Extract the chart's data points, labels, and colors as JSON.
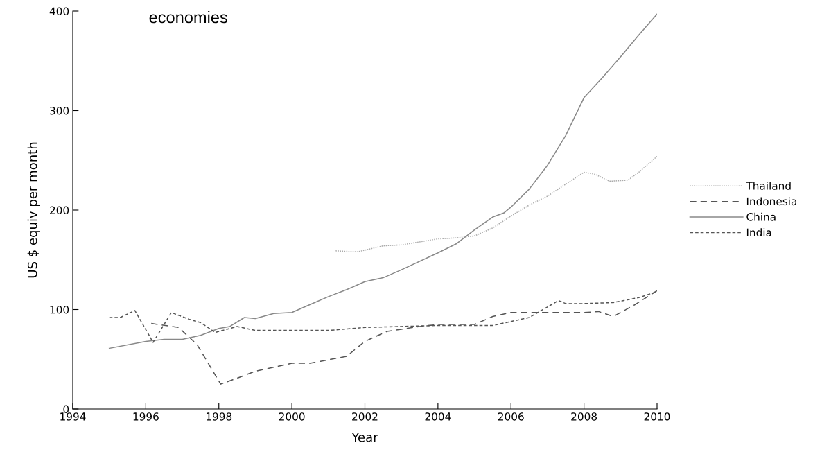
{
  "chart_data": {
    "type": "line",
    "title": "economies",
    "xlabel": "Year",
    "ylabel": "US $ equiv per month",
    "xlim": [
      1994,
      2010
    ],
    "xticks": [
      1994,
      1996,
      1998,
      2000,
      2002,
      2004,
      2006,
      2008,
      2010
    ],
    "ylim": [
      0,
      400
    ],
    "yticks": [
      0,
      100,
      200,
      300,
      400
    ],
    "grid": false,
    "legend": "right",
    "series": [
      {
        "name": "Thailand",
        "color": "#aaaaaa",
        "line_style": "dotted",
        "x": [
          2001.2,
          2001.8,
          2002.5,
          2003,
          2003.5,
          2004,
          2004.5,
          2005,
          2005.5,
          2006,
          2006.5,
          2007,
          2007.5,
          2008,
          2008.3,
          2008.7,
          2009.2,
          2009.5,
          2010
        ],
        "values": [
          159,
          158,
          164,
          165,
          168,
          171,
          172,
          174,
          182,
          194,
          205,
          214,
          226,
          238,
          236,
          229,
          230,
          238,
          254
        ]
      },
      {
        "name": "Indonesia",
        "color": "#555555",
        "line_style": "dashed",
        "x": [
          1996.15,
          1996.9,
          1997.4,
          1998.05,
          1998.5,
          1999,
          2000,
          2000.5,
          2001.5,
          2002,
          2002.6,
          2003.5,
          2004,
          2005,
          2005.5,
          2006,
          2006.5,
          2008,
          2008.4,
          2008.8,
          2009.4,
          2010
        ],
        "values": [
          86,
          82,
          65,
          25,
          31,
          38,
          46,
          46,
          53,
          68,
          78,
          83,
          85,
          85,
          93,
          97,
          97,
          97,
          98,
          93,
          105,
          119
        ]
      },
      {
        "name": "China",
        "color": "#888888",
        "line_style": "solid",
        "x": [
          1995,
          1996,
          1996.5,
          1997,
          1997.5,
          1998,
          1998.3,
          1998.7,
          1999,
          1999.5,
          2000,
          2000.5,
          2001,
          2001.5,
          2002,
          2002.5,
          2003,
          2004,
          2004.5,
          2005,
          2005.5,
          2005.8,
          2006,
          2006.5,
          2007,
          2007.5,
          2008,
          2008.5,
          2009,
          2009.5,
          2010
        ],
        "values": [
          61,
          68,
          70,
          70,
          74,
          81,
          83,
          92,
          91,
          96,
          97,
          105,
          113,
          120,
          128,
          132,
          140,
          157,
          166,
          180,
          193,
          197,
          203,
          221,
          245,
          275,
          313,
          333,
          354,
          376,
          397
        ]
      },
      {
        "name": "India",
        "color": "#555555",
        "line_style": "densely_dashed",
        "x": [
          1995,
          1995.3,
          1995.7,
          1996.2,
          1996.7,
          1997.2,
          1997.5,
          1997.9,
          1998.5,
          1999,
          2000,
          2001,
          2002,
          2003,
          2004,
          2005,
          2005.5,
          2006,
          2006.5,
          2007.3,
          2007.5,
          2008,
          2008.8,
          2009.5,
          2010
        ],
        "values": [
          92,
          92,
          99,
          67,
          97,
          90,
          87,
          77,
          83,
          79,
          79,
          79,
          82,
          83,
          84,
          84,
          84,
          88,
          92,
          109,
          106,
          106,
          107,
          112,
          118
        ]
      }
    ]
  }
}
